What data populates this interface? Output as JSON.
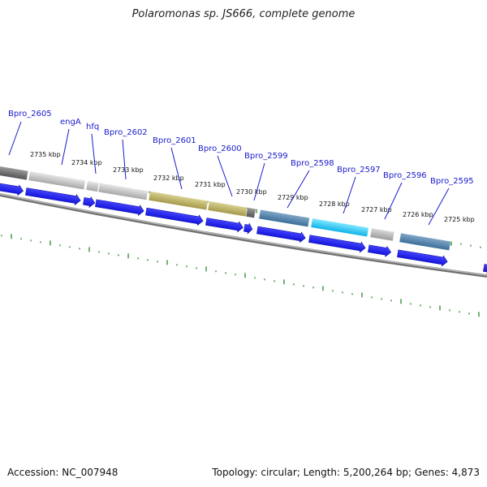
{
  "title": "Polaromonas sp. JS666, complete genome",
  "footer": {
    "accession": "Accession: NC_007948",
    "summary": "Topology: circular; Length: 5,200,264 bp; Genes: 4,873"
  },
  "colors": {
    "backbone": "#888888",
    "tick": "#2a8a2a",
    "gene_label": "#1a1acc",
    "arrow": "#1414e6"
  },
  "kbp_labels": [
    "2735 kbp",
    "2734 kbp",
    "2733 kbp",
    "2732 kbp",
    "2731 kbp",
    "2730 kbp",
    "2729 kbp",
    "2728 kbp",
    "2727 kbp",
    "2726 kbp",
    "2725 kbp"
  ],
  "gene_labels": [
    "Bpro_2605",
    "engA",
    "hfq",
    "Bpro_2602",
    "Bpro_2601",
    "Bpro_2600",
    "Bpro_2599",
    "Bpro_2598",
    "Bpro_2597",
    "Bpro_2596",
    "Bpro_2595"
  ]
}
